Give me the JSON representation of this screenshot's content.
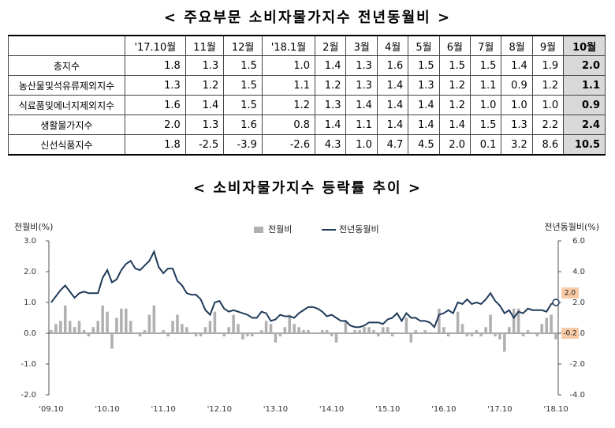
{
  "table": {
    "title": "< 주요부문 소비자물가지수 전년동월비 >",
    "columns": [
      "'17.10월",
      "11월",
      "12월",
      "'18.1월",
      "2월",
      "3월",
      "4월",
      "5월",
      "6월",
      "7월",
      "8월",
      "9월",
      "10월"
    ],
    "rows": [
      {
        "label": "총지수",
        "values": [
          "1.8",
          "1.3",
          "1.5",
          "1.0",
          "1.4",
          "1.3",
          "1.6",
          "1.5",
          "1.5",
          "1.5",
          "1.4",
          "1.9",
          "2.0"
        ]
      },
      {
        "label": "농산물및석유류제외지수",
        "values": [
          "1.3",
          "1.2",
          "1.5",
          "1.1",
          "1.2",
          "1.3",
          "1.4",
          "1.3",
          "1.2",
          "1.1",
          "0.9",
          "1.2",
          "1.1"
        ]
      },
      {
        "label": "식료품및에너지제외지수",
        "values": [
          "1.6",
          "1.4",
          "1.5",
          "1.2",
          "1.3",
          "1.4",
          "1.4",
          "1.4",
          "1.2",
          "1.0",
          "1.0",
          "1.0",
          "0.9"
        ]
      },
      {
        "label": "생활물가지수",
        "values": [
          "2.0",
          "1.3",
          "1.6",
          "0.8",
          "1.4",
          "1.1",
          "1.4",
          "1.4",
          "1.4",
          "1.5",
          "1.3",
          "2.2",
          "2.4"
        ]
      },
      {
        "label": "신선식품지수",
        "values": [
          "1.8",
          "-2.5",
          "-3.9",
          "-2.6",
          "4.3",
          "1.0",
          "4.7",
          "4.5",
          "2.0",
          "0.1",
          "3.2",
          "8.6",
          "10.5"
        ]
      }
    ]
  },
  "chart_data": {
    "type": "bar_line",
    "title": "< 소비자물가지수 등락률 추이 >",
    "y_label": "전월비(%)",
    "y2_label": "전년동월비(%)",
    "annotations": [
      "2.0",
      "-0.2"
    ],
    "categories": [
      "'09.10",
      null,
      null,
      null,
      null,
      null,
      null,
      null,
      null,
      null,
      null,
      null,
      "'10.10",
      null,
      null,
      null,
      null,
      null,
      null,
      null,
      null,
      null,
      null,
      null,
      "'11.10",
      null,
      null,
      null,
      null,
      null,
      null,
      null,
      null,
      null,
      null,
      null,
      "'12.10",
      null,
      null,
      null,
      null,
      null,
      null,
      null,
      null,
      null,
      null,
      null,
      "'13.10",
      null,
      null,
      null,
      null,
      null,
      null,
      null,
      null,
      null,
      null,
      null,
      "'14.10",
      null,
      null,
      null,
      null,
      null,
      null,
      null,
      null,
      null,
      null,
      null,
      "'15.10",
      null,
      null,
      null,
      null,
      null,
      null,
      null,
      null,
      null,
      null,
      null,
      "'16.10",
      null,
      null,
      null,
      null,
      null,
      null,
      null,
      null,
      null,
      null,
      null,
      "'17.10",
      null,
      null,
      null,
      null,
      null,
      null,
      null,
      null,
      null,
      null,
      null,
      "'18.10"
    ],
    "ylim": [
      -2,
      3
    ],
    "yticks": [
      {
        "value": -2,
        "label": "-2.0"
      },
      {
        "value": -1,
        "label": "-1.0"
      },
      {
        "value": 0,
        "label": "0.0"
      },
      {
        "value": 1,
        "label": "1.0"
      },
      {
        "value": 2,
        "label": "2.0"
      },
      {
        "value": 3,
        "label": "3.0"
      }
    ],
    "y2lim": [
      -4,
      6
    ],
    "y2ticks": [
      {
        "value": -4,
        "label": "-4.0"
      },
      {
        "value": -2,
        "label": "-2.0"
      },
      {
        "value": 0,
        "label": "0.0"
      },
      {
        "value": 2,
        "label": "2.0"
      },
      {
        "value": 4,
        "label": "4.0"
      },
      {
        "value": 6,
        "label": "6.0"
      }
    ],
    "series": [
      {
        "name": "전월비",
        "color": "#b0b0b0",
        "type": "bar",
        "values": [
          0.1,
          0.3,
          0.4,
          0.9,
          0.4,
          0.2,
          0.4,
          0.1,
          -0.1,
          0.2,
          0.4,
          0.9,
          0.7,
          -0.5,
          0.5,
          0.8,
          0.8,
          0.4,
          0.0,
          -0.1,
          0.1,
          0.6,
          0.9,
          0.0,
          0.1,
          -0.1,
          0.4,
          0.6,
          0.3,
          0.2,
          0.0,
          -0.1,
          -0.1,
          0.2,
          0.4,
          0.7,
          0.0,
          -0.1,
          0.2,
          0.6,
          0.3,
          -0.2,
          -0.1,
          -0.1,
          0.0,
          0.1,
          0.4,
          0.3,
          -0.3,
          -0.1,
          0.2,
          0.6,
          0.3,
          0.2,
          0.1,
          0.1,
          0.0,
          0.0,
          0.1,
          0.1,
          -0.1,
          -0.3,
          0.0,
          0.4,
          0.0,
          0.1,
          0.1,
          0.2,
          0.2,
          0.1,
          -0.1,
          0.2,
          0.2,
          -0.1,
          0.0,
          0.0,
          0.5,
          -0.3,
          0.1,
          0.0,
          0.1,
          0.0,
          0.0,
          0.8,
          0.2,
          -0.1,
          0.0,
          0.7,
          0.3,
          -0.1,
          -0.1,
          0.1,
          -0.1,
          0.2,
          0.6,
          -0.1,
          -0.2,
          -0.6,
          0.2,
          0.8,
          0.8,
          -0.1,
          0.1,
          0.0,
          -0.1,
          0.3,
          0.5,
          0.6,
          -0.2
        ]
      },
      {
        "name": "전년동월비",
        "color": "#1f3a5a",
        "type": "line",
        "axis": "y2",
        "values": [
          2.0,
          2.4,
          2.8,
          3.1,
          2.7,
          2.3,
          2.6,
          2.7,
          2.6,
          2.6,
          2.6,
          3.6,
          4.1,
          3.3,
          3.5,
          4.1,
          4.5,
          4.7,
          4.2,
          4.1,
          4.4,
          4.7,
          5.3,
          4.3,
          3.9,
          4.2,
          4.2,
          3.4,
          3.1,
          2.6,
          2.5,
          2.5,
          2.2,
          1.5,
          1.2,
          2.0,
          2.1,
          1.6,
          1.4,
          1.5,
          1.4,
          1.3,
          1.2,
          1.0,
          1.0,
          1.4,
          1.3,
          0.8,
          0.9,
          1.2,
          1.1,
          1.1,
          1.0,
          1.3,
          1.5,
          1.7,
          1.7,
          1.6,
          1.4,
          1.1,
          1.2,
          1.0,
          0.8,
          0.8,
          0.5,
          0.4,
          0.4,
          0.5,
          0.7,
          0.7,
          0.7,
          0.6,
          0.9,
          1.0,
          1.3,
          0.8,
          1.3,
          1.0,
          1.0,
          0.8,
          0.8,
          0.7,
          0.4,
          1.2,
          1.3,
          1.5,
          1.3,
          2.0,
          1.9,
          2.2,
          1.9,
          2.0,
          1.9,
          2.2,
          2.6,
          2.1,
          1.8,
          1.3,
          1.5,
          1.0,
          1.4,
          1.3,
          1.6,
          1.5,
          1.5,
          1.5,
          1.4,
          1.9,
          2.0
        ]
      }
    ]
  }
}
